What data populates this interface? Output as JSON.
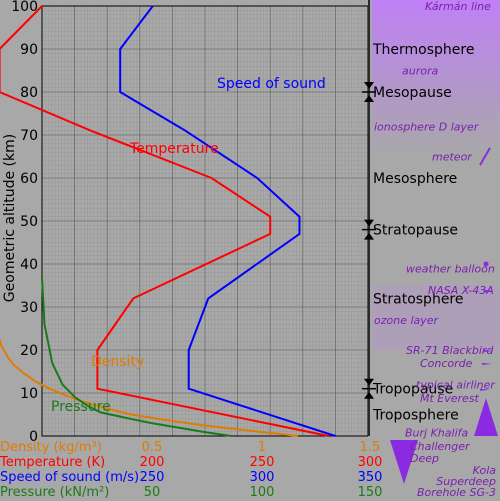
{
  "chart_data": {
    "type": "line",
    "title": "",
    "ylabel": "Geometric altitude (km)",
    "ylim": [
      0,
      100
    ],
    "yticks": [
      "0",
      "10",
      "20",
      "30",
      "40",
      "50",
      "60",
      "70",
      "80",
      "90",
      "100"
    ],
    "series": [
      {
        "name": "Temperature",
        "color": "#ff0000",
        "unit_label": "Temperature (K)",
        "axis": [
          200,
          300
        ],
        "axis_ticks": [
          "200",
          "250",
          "300"
        ],
        "x": [
          288,
          217,
          217,
          228,
          270,
          270,
          252,
          215,
          187,
          187,
          200
        ],
        "y": [
          0,
          11,
          20,
          32,
          47,
          51,
          60,
          71,
          80,
          90,
          100
        ]
      },
      {
        "name": "Speed of sound",
        "color": "#0000ff",
        "unit_label": "Speed of sound (m/s)",
        "axis": [
          250,
          350
        ],
        "axis_ticks": [
          "250",
          "300",
          "350"
        ],
        "x": [
          340,
          295,
          295,
          301,
          329,
          329,
          316,
          294,
          274,
          274,
          284
        ],
        "y": [
          0,
          11,
          20,
          32,
          47,
          51,
          60,
          71,
          80,
          90,
          100
        ]
      },
      {
        "name": "Density",
        "color": "#e07c00",
        "unit_label": "Density (kg/m³)",
        "axis": [
          0.22,
          1.5
        ],
        "axis_ticks": [
          "0.5",
          "1",
          "1.5"
        ],
        "x": [
          1.225,
          1.0,
          0.85,
          0.7,
          0.57,
          0.47,
          0.38,
          0.31,
          0.25,
          0.2,
          0.15,
          0.11,
          0.09,
          0.06,
          0.04,
          0.02,
          0.0
        ],
        "y": [
          0,
          1.5,
          2.5,
          3.8,
          5,
          6.5,
          8,
          9.5,
          11,
          12.5,
          14.5,
          16.5,
          18,
          21,
          25,
          31,
          37
        ]
      },
      {
        "name": "Pressure",
        "color": "#1a7a1a",
        "unit_label": "Pressure (kN/m²)",
        "axis": [
          27,
          155
        ],
        "axis_ticks": [
          "50",
          "100",
          "150"
        ],
        "x": [
          101.3,
          90,
          80,
          70,
          60,
          50,
          45,
          40,
          35,
          31,
          28,
          27
        ],
        "y": [
          0,
          1,
          2,
          3,
          4.2,
          5.5,
          7,
          9,
          12,
          17,
          26,
          37
        ]
      }
    ],
    "curve_labels": [
      "Speed of sound",
      "Temperature",
      "Density",
      "Pressure"
    ],
    "layers": [
      {
        "label": "Thermosphere",
        "alt": 90
      },
      {
        "label": "Mesopause",
        "alt": 80
      },
      {
        "label": "Mesosphere",
        "alt": 60
      },
      {
        "label": "Stratopause",
        "alt": 48
      },
      {
        "label": "Stratosphere",
        "alt": 32
      },
      {
        "label": "Tropopause",
        "alt": 11
      },
      {
        "label": "Troposphere",
        "alt": 5
      }
    ],
    "boundaries": [
      80,
      48,
      11
    ],
    "notes": [
      {
        "label": "Kármán line",
        "alt": 100
      },
      {
        "label": "aurora",
        "alt": 85
      },
      {
        "label": "ionosphere D layer",
        "alt": 72
      },
      {
        "label": "meteor",
        "alt": 65
      },
      {
        "label": "weather balloon",
        "alt": 39
      },
      {
        "label": "NASA X-43A",
        "alt": 34
      },
      {
        "label": "ozone layer",
        "alt": 27
      },
      {
        "label": "SR-71 Blackbird",
        "alt": 20
      },
      {
        "label": "Concorde",
        "alt": 17
      },
      {
        "label": "typical airliner",
        "alt": 12
      },
      {
        "label": "Mt Everest",
        "alt": 8.8
      },
      {
        "label": "Burj Khalifa",
        "alt": 0.8
      },
      {
        "label": "Challenger Deep",
        "alt": -11
      },
      {
        "label": "Kola Superdeep Borehole SG-3",
        "alt": -12
      }
    ],
    "grid": true,
    "legend": "bottom"
  },
  "colors": {
    "background": "#a8a8a8",
    "note": "#7a1fb0",
    "marker": "#8a2be2"
  }
}
